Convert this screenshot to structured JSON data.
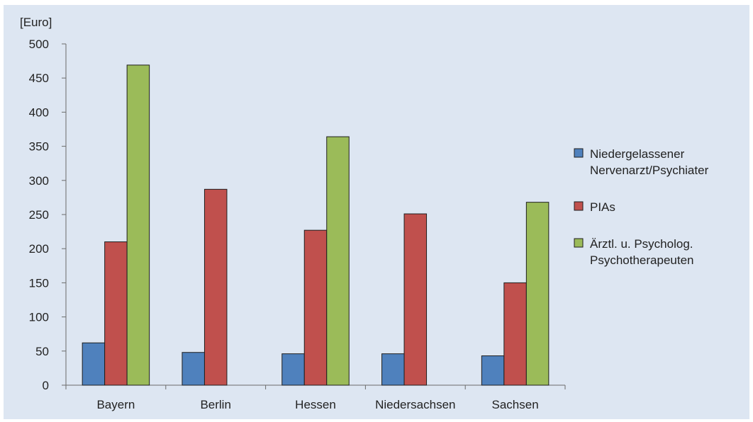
{
  "chart_data": {
    "type": "bar",
    "unit_label": "[Euro]",
    "categories": [
      "Bayern",
      "Berlin",
      "Hessen",
      "Niedersachsen",
      "Sachsen"
    ],
    "series": [
      {
        "name_lines": [
          "Niedergelassener",
          "Nervenarzt/Psychiater"
        ],
        "color": "#4f81bd",
        "values": [
          62,
          48,
          46,
          46,
          43
        ]
      },
      {
        "name_lines": [
          "PIAs"
        ],
        "color": "#c0504d",
        "values": [
          210,
          287,
          227,
          251,
          150
        ]
      },
      {
        "name_lines": [
          "Ärztl. u. Psycholog.",
          "Psychotherapeuten"
        ],
        "color": "#9bbb59",
        "values": [
          469,
          null,
          364,
          null,
          268
        ]
      }
    ],
    "y_ticks": [
      "0",
      "50",
      "100",
      "150",
      "200",
      "250",
      "300",
      "350",
      "400",
      "450",
      "500"
    ],
    "ylim": [
      0,
      500
    ],
    "grid": false,
    "legend_position": "right"
  }
}
